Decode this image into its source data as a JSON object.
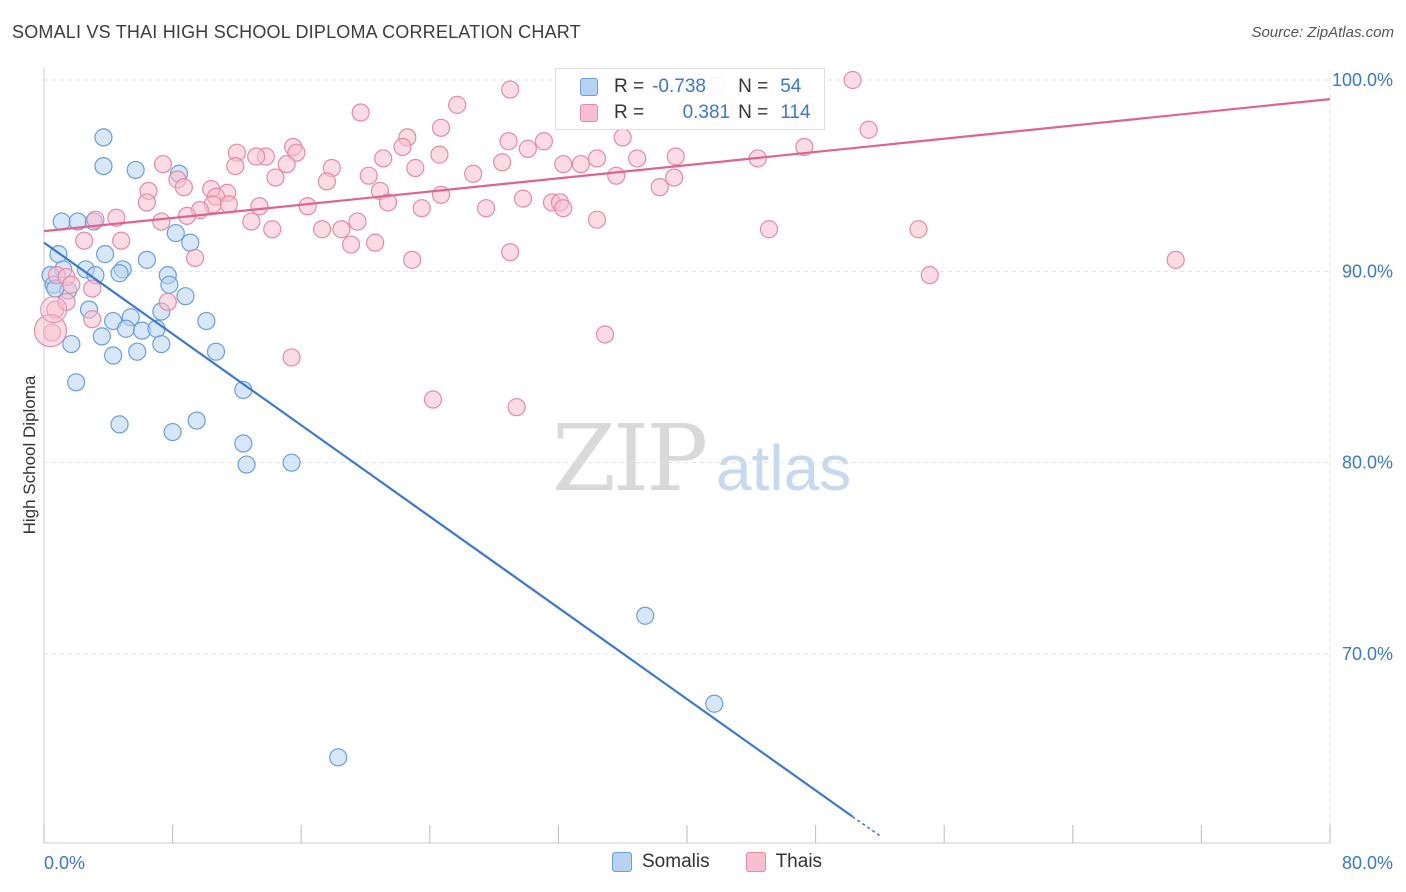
{
  "title": "SOMALI VS THAI HIGH SCHOOL DIPLOMA CORRELATION CHART",
  "source": "Source: ZipAtlas.com",
  "watermark": {
    "zip": "ZIP",
    "atlas": "atlas"
  },
  "legend": {
    "r_label": "R =",
    "n_label": "N =",
    "series": [
      {
        "name": "Somalis",
        "r": "-0.738",
        "n": "54",
        "fill": "#b8d3f2",
        "stroke": "#6a9fdc"
      },
      {
        "name": "Thais",
        "r": "0.381",
        "n": "114",
        "fill": "#f7bfd0",
        "stroke": "#e58aa8"
      }
    ]
  },
  "chart_data": {
    "type": "scatter",
    "title": "SOMALI VS THAI HIGH SCHOOL DIPLOMA CORRELATION CHART",
    "xlabel": "",
    "ylabel": "High School Diploma",
    "xlim": [
      0,
      80
    ],
    "ylim": [
      61,
      101
    ],
    "x_tick_labels": [
      "0.0%",
      "80.0%"
    ],
    "y_ticks": [
      70,
      80,
      90,
      100
    ],
    "y_tick_labels": [
      "70.0%",
      "80.0%",
      "90.0%",
      "100.0%"
    ],
    "grid": true,
    "legend_position": "top-center",
    "series": [
      {
        "name": "Somalis",
        "color": "#3a78d6",
        "trend": {
          "x": [
            0,
            50.3
          ],
          "y": [
            91.5,
            61.5
          ],
          "dashed_to": [
            52.0,
            60.5
          ]
        },
        "points": [
          [
            3.7,
            97.0
          ],
          [
            3.7,
            95.5
          ],
          [
            5.7,
            95.3
          ],
          [
            8.4,
            95.1
          ],
          [
            1.1,
            92.6
          ],
          [
            2.1,
            92.6
          ],
          [
            3.1,
            92.6
          ],
          [
            8.2,
            92.0
          ],
          [
            9.1,
            91.5
          ],
          [
            0.9,
            90.9
          ],
          [
            3.8,
            90.9
          ],
          [
            6.4,
            90.6
          ],
          [
            1.2,
            90.1
          ],
          [
            2.6,
            90.1
          ],
          [
            4.9,
            90.1
          ],
          [
            4.7,
            89.9
          ],
          [
            3.2,
            89.8
          ],
          [
            7.7,
            89.8
          ],
          [
            0.4,
            89.8
          ],
          [
            0.6,
            89.3
          ],
          [
            1.5,
            89.0
          ],
          [
            7.8,
            89.3
          ],
          [
            8.8,
            88.7
          ],
          [
            0.7,
            89.1
          ],
          [
            2.8,
            88.0
          ],
          [
            7.3,
            87.9
          ],
          [
            10.1,
            87.4
          ],
          [
            4.3,
            87.4
          ],
          [
            5.4,
            87.6
          ],
          [
            5.1,
            87.0
          ],
          [
            6.1,
            86.9
          ],
          [
            7.0,
            87.0
          ],
          [
            3.6,
            86.6
          ],
          [
            1.7,
            86.2
          ],
          [
            7.3,
            86.2
          ],
          [
            10.7,
            85.8
          ],
          [
            4.3,
            85.6
          ],
          [
            5.8,
            85.8
          ],
          [
            2.0,
            84.2
          ],
          [
            12.4,
            83.8
          ],
          [
            4.7,
            82.0
          ],
          [
            9.5,
            82.2
          ],
          [
            8.0,
            81.6
          ],
          [
            12.4,
            81.0
          ],
          [
            12.6,
            79.9
          ],
          [
            15.4,
            80.0
          ],
          [
            37.4,
            72.0
          ],
          [
            41.7,
            67.4
          ],
          [
            18.3,
            64.6
          ]
        ]
      },
      {
        "name": "Thais",
        "color": "#e0628f",
        "trend": {
          "x": [
            0,
            80
          ],
          "y": [
            92.1,
            99.0
          ]
        },
        "points": [
          [
            50.3,
            100.0
          ],
          [
            29.0,
            99.5
          ],
          [
            41.8,
            99.7
          ],
          [
            19.7,
            98.3
          ],
          [
            25.7,
            98.7
          ],
          [
            46.6,
            98.5
          ],
          [
            47.4,
            98.4
          ],
          [
            24.7,
            97.5
          ],
          [
            51.3,
            97.4
          ],
          [
            22.6,
            97.0
          ],
          [
            28.9,
            96.8
          ],
          [
            36.0,
            97.0
          ],
          [
            31.1,
            96.8
          ],
          [
            47.3,
            96.5
          ],
          [
            15.5,
            96.5
          ],
          [
            22.3,
            96.5
          ],
          [
            30.1,
            96.4
          ],
          [
            12.0,
            96.2
          ],
          [
            13.8,
            96.0
          ],
          [
            13.2,
            96.0
          ],
          [
            15.7,
            96.2
          ],
          [
            24.6,
            96.1
          ],
          [
            21.1,
            95.9
          ],
          [
            32.3,
            95.6
          ],
          [
            34.4,
            95.9
          ],
          [
            36.9,
            95.9
          ],
          [
            39.3,
            96.0
          ],
          [
            44.4,
            95.9
          ],
          [
            7.4,
            95.6
          ],
          [
            11.9,
            95.5
          ],
          [
            15.1,
            95.6
          ],
          [
            17.9,
            95.4
          ],
          [
            23.1,
            95.4
          ],
          [
            33.4,
            95.6
          ],
          [
            28.5,
            95.7
          ],
          [
            8.3,
            94.8
          ],
          [
            14.4,
            94.9
          ],
          [
            17.6,
            94.7
          ],
          [
            20.2,
            95.0
          ],
          [
            26.7,
            95.1
          ],
          [
            39.2,
            94.9
          ],
          [
            35.6,
            95.0
          ],
          [
            38.3,
            94.4
          ],
          [
            6.5,
            94.2
          ],
          [
            8.7,
            94.4
          ],
          [
            10.4,
            94.3
          ],
          [
            11.4,
            94.1
          ],
          [
            20.9,
            94.2
          ],
          [
            24.7,
            94.0
          ],
          [
            29.8,
            93.8
          ],
          [
            31.6,
            93.6
          ],
          [
            10.7,
            93.9
          ],
          [
            13.4,
            93.4
          ],
          [
            6.4,
            93.6
          ],
          [
            10.5,
            93.5
          ],
          [
            11.5,
            93.5
          ],
          [
            21.4,
            93.6
          ],
          [
            16.4,
            93.4
          ],
          [
            23.5,
            93.3
          ],
          [
            27.5,
            93.3
          ],
          [
            32.1,
            93.6
          ],
          [
            32.3,
            93.3
          ],
          [
            9.7,
            93.2
          ],
          [
            3.2,
            92.7
          ],
          [
            4.5,
            92.8
          ],
          [
            7.3,
            92.6
          ],
          [
            8.9,
            92.9
          ],
          [
            12.9,
            92.6
          ],
          [
            17.3,
            92.2
          ],
          [
            19.5,
            92.6
          ],
          [
            14.2,
            92.2
          ],
          [
            18.5,
            92.2
          ],
          [
            20.6,
            91.5
          ],
          [
            34.4,
            92.7
          ],
          [
            45.1,
            92.2
          ],
          [
            54.4,
            92.2
          ],
          [
            2.5,
            91.6
          ],
          [
            4.8,
            91.6
          ],
          [
            19.1,
            91.4
          ],
          [
            29.0,
            91.0
          ],
          [
            22.9,
            90.6
          ],
          [
            9.4,
            90.7
          ],
          [
            0.8,
            89.8
          ],
          [
            1.4,
            89.7
          ],
          [
            1.7,
            89.3
          ],
          [
            3.0,
            89.1
          ],
          [
            55.1,
            89.8
          ],
          [
            70.4,
            90.6
          ],
          [
            0.7,
            88.0
          ],
          [
            7.7,
            88.4
          ],
          [
            3.0,
            87.5
          ],
          [
            34.9,
            86.7
          ],
          [
            15.4,
            85.5
          ],
          [
            24.2,
            83.3
          ],
          [
            29.4,
            82.9
          ],
          [
            1.4,
            88.4
          ],
          [
            0.5,
            86.8
          ]
        ]
      }
    ]
  }
}
